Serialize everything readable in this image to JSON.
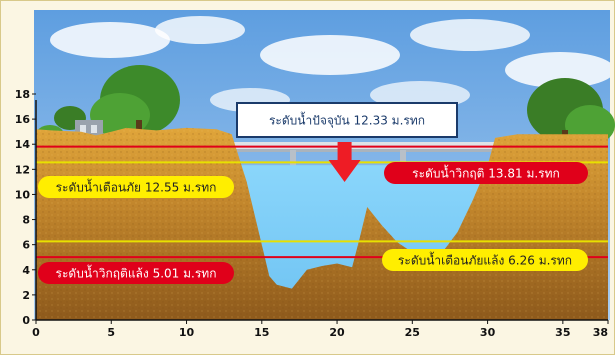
{
  "chart_data": {
    "type": "area",
    "x_ticks": [
      "0",
      "5",
      "10",
      "15",
      "20",
      "25",
      "30",
      "35",
      "38"
    ],
    "y_ticks": [
      "0",
      "2",
      "4",
      "6",
      "8",
      "10",
      "12",
      "14",
      "16",
      "18"
    ],
    "xlim": [
      0,
      38
    ],
    "ylim": [
      0,
      19
    ],
    "current_level_label": "ระดับน้ำปัจจุบัน 12.33 ม.รทก",
    "current_level": 12.33,
    "critical_high_label": "ระดับน้ำวิกฤติ 13.81 ม.รทก",
    "critical_high": 13.81,
    "warning_high_label": "ระดับน้ำเตือนภัย 12.55 ม.รทก",
    "warning_high": 12.55,
    "warning_low_label": "ระดับน้ำเตือนภัยแล้ง 6.26 ม.รทก",
    "warning_low": 6.26,
    "critical_low_label": "ระดับน้ำวิกฤติแล้ง 5.01 ม.รทก",
    "critical_low": 5.01,
    "riverbed_profile": [
      [
        0,
        15.2
      ],
      [
        1,
        15.1
      ],
      [
        3,
        15.0
      ],
      [
        4,
        14.7
      ],
      [
        5,
        15.0
      ],
      [
        6,
        15.3
      ],
      [
        8,
        15.1
      ],
      [
        10,
        15.3
      ],
      [
        12,
        15.2
      ],
      [
        13,
        14.8
      ],
      [
        14,
        11.0
      ],
      [
        15,
        6.0
      ],
      [
        15.5,
        3.5
      ],
      [
        16,
        2.8
      ],
      [
        17,
        2.5
      ],
      [
        18,
        4.0
      ],
      [
        19,
        4.3
      ],
      [
        20,
        4.5
      ],
      [
        21,
        4.2
      ],
      [
        21.5,
        6.5
      ],
      [
        22,
        9.0
      ],
      [
        23,
        7.5
      ],
      [
        24,
        6.2
      ],
      [
        25,
        5.4
      ],
      [
        26,
        5.0
      ],
      [
        27,
        5.4
      ],
      [
        28,
        7.0
      ],
      [
        29,
        9.5
      ],
      [
        30,
        12.3
      ],
      [
        30.5,
        14.5
      ],
      [
        32,
        14.8
      ],
      [
        35,
        14.8
      ],
      [
        38,
        14.8
      ]
    ],
    "colors": {
      "water": "#7fcdf7",
      "soil": "#c58a2c",
      "critical_line": "#e0001a",
      "warning_line": "#e8e000",
      "arrow": "#ee1c25"
    }
  }
}
